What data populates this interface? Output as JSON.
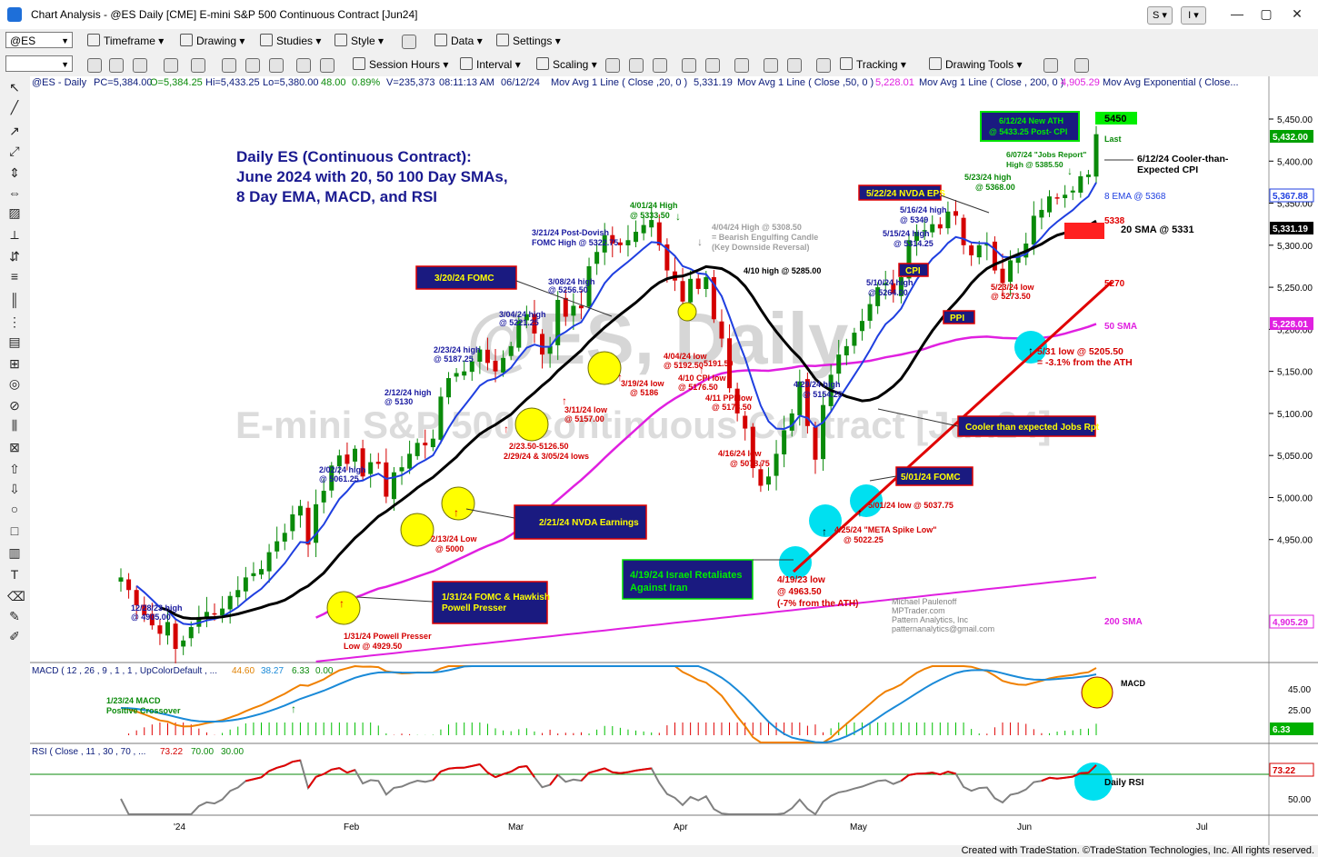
{
  "window": {
    "title": "Chart Analysis - @ES Daily [CME] E-mini S&P 500 Continuous Contract [Jun24]",
    "btn_s": "S",
    "btn_i": "I"
  },
  "toolbar1": {
    "symbol": "@ES",
    "timeframe": "Timeframe",
    "drawing": "Drawing",
    "studies": "Studies",
    "style": "Style",
    "data": "Data",
    "settings": "Settings"
  },
  "toolbar2": {
    "session": "Session Hours",
    "interval": "Interval",
    "scaling": "Scaling",
    "tracking": "Tracking",
    "drawing_tools": "Drawing Tools"
  },
  "footer": "Created with TradeStation. ©TradeStation Technologies, Inc. All rights reserved.",
  "colors": {
    "bg": "#ffffff",
    "up": "#0a8a0a",
    "down": "#d40000",
    "ema8": "#1f3fe0",
    "sma20": "#000000",
    "sma50": "#e020e0",
    "sma200": "#e020e0",
    "trend": "#e00000",
    "navy": "#0a1a7a",
    "box": "#1a1a80"
  },
  "chart_data": [
    {
      "type": "candlestick",
      "status_line": [
        "@ES - Daily",
        "PC=5,384.00",
        "O=5,384.25",
        "Hi=5,433.25",
        "Lo=5,380.00",
        "48.00",
        "0.89%",
        "V=235,373",
        "08:11:13 AM",
        "06/12/24",
        "Mov Avg 1 Line ( Close ,20, 0 )",
        "5,331.19",
        "Mov Avg 1 Line ( Close ,50, 0 )",
        "5,228.01",
        "Mov Avg 1 Line ( Close , 200, 0 )",
        "4,905.29",
        "Mov Avg Exponential ( Close..."
      ],
      "title": "Daily ES (Continuous Contract):",
      "subtitle": [
        "June 2024 with 20, 50 100 Day SMAs,",
        "8 Day EMA, MACD, and RSI"
      ],
      "watermark": [
        "@ES, Daily",
        "E-mini S&P 500 Continuous Contract [Jun24]"
      ],
      "x_tick_labels": [
        "'24",
        "Feb",
        "Mar",
        "Apr",
        "May",
        "Jun",
        "Jul"
      ],
      "y_ticks": [
        4950,
        5000,
        5050,
        5100,
        5150,
        5200,
        5250,
        5300,
        5350,
        5400,
        5450
      ],
      "y_tick_labels": [
        "4,950.00",
        "5,000.00",
        "5,050.00",
        "5,100.00",
        "5,150.00",
        "5,200.00",
        "5,250.00",
        "5,300.00",
        "5,350.00",
        "5,400.00",
        "5,450.00"
      ],
      "ylim": [
        4880,
        5470
      ],
      "last_price_labels": {
        "last": "5,432.00",
        "ema8": "5,367.88",
        "sma20": "5,331.19",
        "sma50": "5,228.01",
        "sma200": "4,905.29"
      },
      "closes": [
        4905,
        4890,
        4872,
        4860,
        4848,
        4838,
        4852,
        4820,
        4830,
        4846,
        4858,
        4864,
        4862,
        4868,
        4883,
        4890,
        4905,
        4910,
        4915,
        4935,
        4948,
        4958,
        4980,
        4990,
        4944,
        4992,
        5008,
        5038,
        5050,
        5040,
        5058,
        5025,
        5042,
        5040,
        5001,
        5030,
        5036,
        5052,
        5065,
        5062,
        5070,
        5120,
        5142,
        5148,
        5150,
        5162,
        5176,
        5160,
        5150,
        5166,
        5180,
        5210,
        5218,
        5195,
        5170,
        5180,
        5235,
        5215,
        5228,
        5225,
        5275,
        5292,
        5312,
        5302,
        5300,
        5306,
        5316,
        5324,
        5330,
        5300,
        5270,
        5258,
        5233,
        5260,
        5248,
        5262,
        5212,
        5189,
        5130,
        5100,
        5082,
        5035,
        5014,
        5025,
        5052,
        5080,
        5100,
        5138,
        5085,
        5045,
        5110,
        5146,
        5170,
        5180,
        5196,
        5210,
        5230,
        5250,
        5255,
        5242,
        5262,
        5306,
        5316,
        5318,
        5325,
        5320,
        5340,
        5335,
        5300,
        5288,
        5300,
        5302,
        5270,
        5255,
        5282,
        5288,
        5302,
        5335,
        5342,
        5358,
        5356,
        5360,
        5365,
        5382,
        5384,
        5432
      ],
      "series": [
        {
          "name": "8 EMA @ 5368"
        },
        {
          "name": "20 SMA @ 5331"
        },
        {
          "name": "50 SMA"
        },
        {
          "name": "200 SMA"
        }
      ],
      "levels": [
        {
          "label": "5450",
          "value": 5450
        },
        {
          "label": "5338",
          "value": 5338
        },
        {
          "label": "5270",
          "value": 5270
        }
      ],
      "annotations": [
        {
          "text": [
            "12/28/23 high",
            "@ 4905.00"
          ]
        },
        {
          "text": [
            "1/31/24 Powell Presser",
            "Low @ 4929.50"
          ]
        },
        {
          "text": [
            "2/02/24 high",
            "@ 5061.25"
          ]
        },
        {
          "text": [
            "2/12/24 high",
            "@ 5130"
          ]
        },
        {
          "text": [
            "2/13/24 Low",
            "@ 5000"
          ]
        },
        {
          "text": [
            "2/23/24 high",
            "@ 5187.25"
          ]
        },
        {
          "text": [
            "3/04/24 high",
            "@ 5221.25"
          ]
        },
        {
          "text": [
            "3/08/24 high",
            "@ 5256.50"
          ]
        },
        {
          "text": [
            "3/11/24 low",
            "@ 5157.00"
          ]
        },
        {
          "text": [
            "2/23.50-5126.50",
            "2/29/24 & 3/05/24 lows"
          ]
        },
        {
          "text": [
            "3/19/24 low",
            "@ 5186"
          ]
        },
        {
          "text": [
            "3/21/24 Post-Dovish",
            "FOMC High @ 5322.75"
          ]
        },
        {
          "text": [
            "4/01/24 High",
            "@ 5333.50"
          ]
        },
        {
          "text": [
            "4/04/24 High @ 5308.50",
            "= Bearish Engulfing Candle",
            "(Key Downside Reversal)"
          ]
        },
        {
          "text": [
            "4/04/24 low",
            "@ 5192.50"
          ]
        },
        {
          "text": [
            "5191.50"
          ]
        },
        {
          "text": [
            "4/10 CPI low",
            "@ 5176.50"
          ]
        },
        {
          "text": [
            "4/11 PPI low",
            "@ 5173.50"
          ]
        },
        {
          "text": [
            "4/10 high @ 5285.00"
          ]
        },
        {
          "text": [
            "4/16/24 low",
            "@ 5078.75"
          ]
        },
        {
          "text": [
            "4/19/23 low",
            "@ 4963.50",
            "(-7% from the ATH)"
          ]
        },
        {
          "text": [
            "4/29/24 high",
            "@ 5154.25"
          ]
        },
        {
          "text": [
            "4/25/24 \"META Spike Low\"",
            "@ 5022.25"
          ]
        },
        {
          "text": [
            "5/01/24 low @ 5037.75"
          ]
        },
        {
          "text": [
            "5/10/24 high",
            "@ 5264.00"
          ]
        },
        {
          "text": [
            "5/15/24 high",
            "@ 5314.25"
          ]
        },
        {
          "text": [
            "5/16/24 high",
            "@ 5349"
          ]
        },
        {
          "text": [
            "5/23/24 high",
            "@ 5368.00"
          ]
        },
        {
          "text": [
            "5/23/24 low",
            "@ 5273.50"
          ]
        },
        {
          "text": [
            "5/31 low @ 5205.50",
            "= -3.1% from the ATH"
          ]
        },
        {
          "text": [
            "6/07/24 \"Jobs Report\"",
            "High @ 5385.50"
          ]
        },
        {
          "text": [
            "6/12/24 Cooler-than-",
            "Expected CPI"
          ]
        },
        {
          "text": [
            "Last"
          ]
        },
        {
          "text": [
            "Michael Paulenoff",
            "MPTrader.com",
            "Pattern Analytics, Inc",
            "patternanalytics@gmail.com"
          ]
        }
      ],
      "boxes": [
        {
          "text": [
            "3/20/24 FOMC"
          ]
        },
        {
          "text": [
            "2/21/24 NVDA Earnings"
          ]
        },
        {
          "text": [
            "1/31/24 FOMC & Hawkish",
            "Powell Presser"
          ]
        },
        {
          "text": [
            "4/19/24 Israel Retaliates",
            "Against Iran"
          ]
        },
        {
          "text": [
            "Cooler than expected Jobs Rpt"
          ]
        },
        {
          "text": [
            "5/01/24 FOMC"
          ]
        },
        {
          "text": [
            "5/22/24 NVDA EPS"
          ]
        },
        {
          "text": [
            "CPI"
          ]
        },
        {
          "text": [
            "PPI"
          ]
        },
        {
          "text": [
            "6/12/24 New ATH",
            "@ 5433.25 Post- CPI"
          ]
        }
      ]
    },
    {
      "type": "line",
      "title": "MACD ( 12 , 26 , 9 , 1 , 1 , UpColorDefault , ...",
      "readout": [
        "44.60",
        "38.27",
        "6.33",
        "0.00"
      ],
      "y_tick_labels": [
        "45.00",
        "25.00"
      ],
      "last_label": "6.33",
      "series": [
        {
          "name": "MACD",
          "last": 44.6
        },
        {
          "name": "Signal",
          "last": 38.27
        },
        {
          "name": "Histogram",
          "last": 6.33
        }
      ],
      "annotations": [
        "1/23/24 MACD",
        "Positive Crossover",
        "MACD"
      ]
    },
    {
      "type": "line",
      "title": "RSI ( Close , 11 , 30 , 70 , ...",
      "readout": [
        "73.22",
        "70.00",
        "30.00"
      ],
      "y_tick_labels": [
        "50.00"
      ],
      "last_label": "73.22",
      "series": [
        {
          "name": "RSI",
          "last": 73.22
        }
      ],
      "annotations": [
        "Daily RSI"
      ]
    }
  ]
}
